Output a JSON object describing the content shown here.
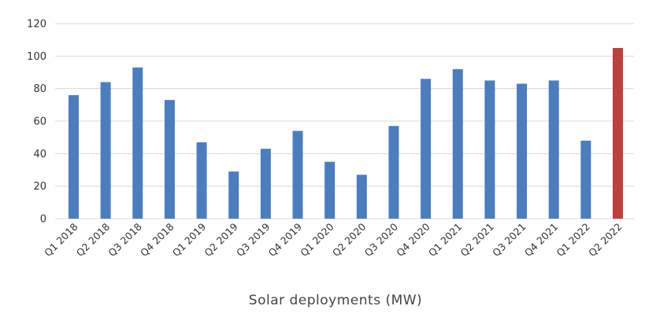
{
  "chart_data": {
    "type": "bar",
    "title": "",
    "xlabel": "Solar deployments (MW)",
    "ylabel": "",
    "ylim": [
      0,
      120
    ],
    "yticks": [
      0,
      20,
      40,
      60,
      80,
      100,
      120
    ],
    "grid": true,
    "categories": [
      "Q1 2018",
      "Q2 2018",
      "Q3 2018",
      "Q4 2018",
      "Q1 2019",
      "Q2 2019",
      "Q3 2019",
      "Q4 2019",
      "Q1 2020",
      "Q2 2020",
      "Q3 2020",
      "Q4 2020",
      "Q1 2021",
      "Q2 2021",
      "Q3 2021",
      "Q4 2021",
      "Q1 2022",
      "Q2 2022"
    ],
    "values": [
      76,
      84,
      93,
      73,
      47,
      29,
      43,
      54,
      35,
      27,
      57,
      86,
      92,
      85,
      83,
      85,
      48,
      105
    ],
    "colors": {
      "bar": "#4a7ebf",
      "highlight": "#bf3f3a"
    },
    "highlight_index": 17
  }
}
